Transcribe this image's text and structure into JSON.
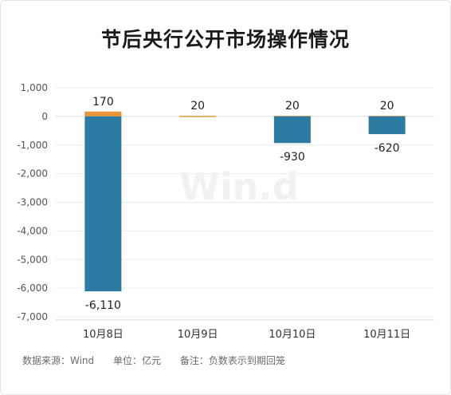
{
  "chart_data": {
    "type": "bar",
    "stacked": true,
    "title": "节后央行公开市场操作情况",
    "categories": [
      "10月8日",
      "10月9日",
      "10月10日",
      "10月11日"
    ],
    "series": [
      {
        "color": "#E8953A",
        "values": [
          170,
          20,
          20,
          20
        ]
      },
      {
        "color": "#2C7BA3",
        "values": [
          -6110,
          0,
          -930,
          -620
        ]
      }
    ],
    "data_labels": [
      "170",
      "-6,110",
      "20",
      "20",
      "-930",
      "20",
      "-620"
    ],
    "y_ticks": [
      "1,000",
      "0",
      "-1,000",
      "-2,000",
      "-3,000",
      "-4,000",
      "-5,000",
      "-6,000",
      "-7,000"
    ],
    "ylim": [
      -7000,
      1000
    ],
    "grid": true,
    "legend": "none"
  },
  "watermark": "Win.d",
  "footer": {
    "source": "数据来源：Wind",
    "unit": "单位：亿元",
    "note": "备注：负数表示到期回笼"
  }
}
